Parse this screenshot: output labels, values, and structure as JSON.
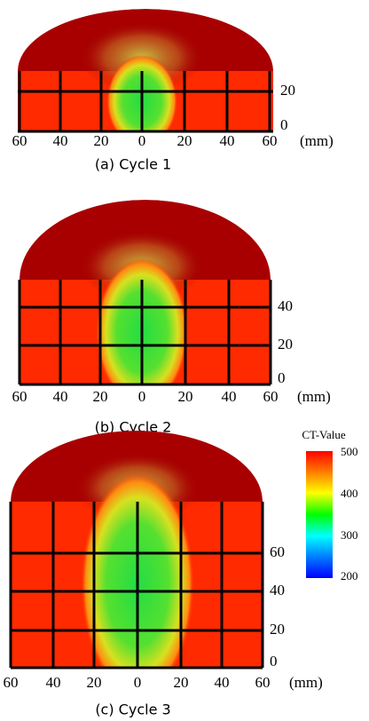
{
  "panels": [
    {
      "caption": "(a) Cycle 1",
      "x_ticks": [
        60,
        40,
        20,
        0,
        20,
        40,
        60
      ],
      "x_unit": "(mm)",
      "y_ticks": [
        20,
        0
      ]
    },
    {
      "caption": "(b) Cycle 2",
      "x_ticks": [
        60,
        40,
        20,
        0,
        20,
        40,
        60
      ],
      "x_unit": "(mm)",
      "y_ticks": [
        40,
        20,
        0
      ]
    },
    {
      "caption": "(c) Cycle 3",
      "x_ticks": [
        60,
        40,
        20,
        0,
        20,
        40,
        60
      ],
      "x_unit": "(mm)",
      "y_ticks": [
        60,
        40,
        20,
        0
      ]
    }
  ],
  "colorbar": {
    "title": "CT-Value",
    "ticks": [
      500,
      400,
      300,
      200
    ]
  }
}
